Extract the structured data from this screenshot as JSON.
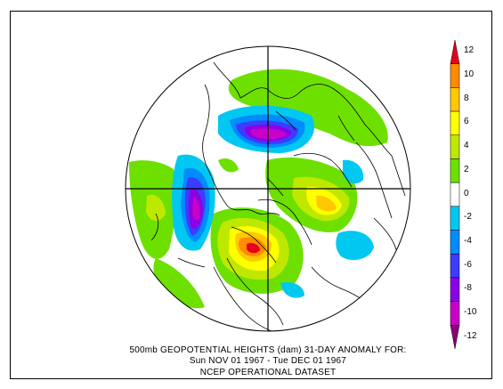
{
  "caption": {
    "line1": "500mb GEOPOTENTIAL HEIGHTS (dam)    31-DAY ANOMALY FOR:",
    "line2": "Sun NOV 01 1967 - Tue DEC 01 1967",
    "line3": "NCEP OPERATIONAL DATASET"
  },
  "colorbar": {
    "levels": [
      {
        "label": "12",
        "color": "#e8001e"
      },
      {
        "label": "10",
        "color": "#ff8c00"
      },
      {
        "label": "8",
        "color": "#ffc800"
      },
      {
        "label": "6",
        "color": "#ffff00"
      },
      {
        "label": "4",
        "color": "#bfe800"
      },
      {
        "label": "2",
        "color": "#6ee000"
      },
      {
        "label": "0",
        "color": "#ffffff"
      },
      {
        "label": "-2",
        "color": "#00c8f0"
      },
      {
        "label": "-4",
        "color": "#008cff"
      },
      {
        "label": "-6",
        "color": "#3c3cff"
      },
      {
        "label": "-8",
        "color": "#8c00e6"
      },
      {
        "label": "-10",
        "color": "#c800c8"
      },
      {
        "label": "-12",
        "color": "#8c0078"
      }
    ]
  }
}
